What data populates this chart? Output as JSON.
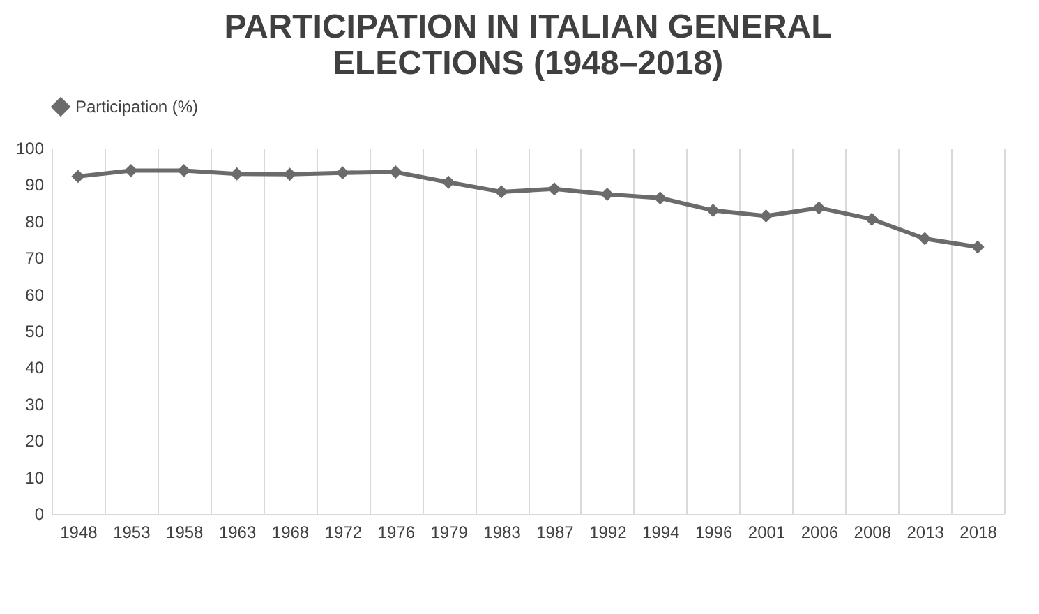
{
  "chart_data": {
    "type": "line",
    "title": "PARTICIPATION IN ITALIAN GENERAL ELECTIONS (1948–2018)",
    "categories": [
      "1948",
      "1953",
      "1958",
      "1963",
      "1968",
      "1972",
      "1976",
      "1979",
      "1983",
      "1987",
      "1992",
      "1994",
      "1996",
      "2001",
      "2006",
      "2008",
      "2013",
      "2018"
    ],
    "series": [
      {
        "name": "Participation (%)",
        "color": "#6b6b6d",
        "values": [
          92.2,
          93.8,
          93.8,
          92.9,
          92.8,
          93.2,
          93.4,
          90.6,
          88.0,
          88.8,
          87.3,
          86.3,
          82.9,
          81.4,
          83.6,
          80.5,
          75.2,
          72.9
        ]
      }
    ],
    "ylim": [
      0,
      100
    ],
    "yticks": [
      0,
      10,
      20,
      30,
      40,
      50,
      60,
      70,
      80,
      90,
      100
    ],
    "grid": "x",
    "legend": "top",
    "marker": "diamond",
    "line_style": "solid"
  }
}
